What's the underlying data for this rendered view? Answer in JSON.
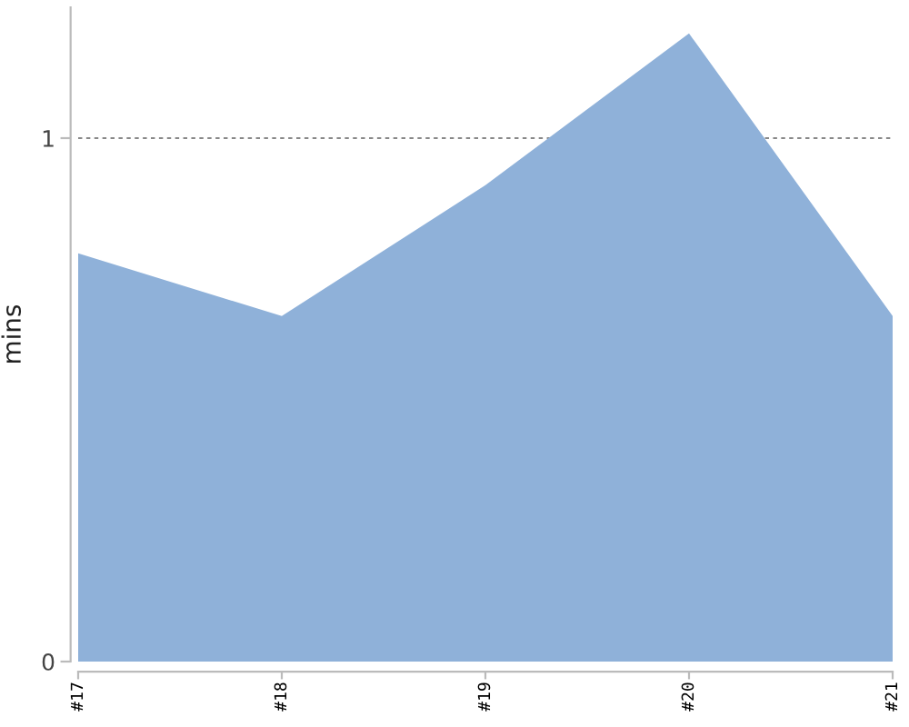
{
  "chart_data": {
    "type": "area",
    "ylabel": "mins",
    "categories": [
      "#17",
      "#18",
      "#19",
      "#20",
      "#21"
    ],
    "series": [
      {
        "color": "#8fb1d9",
        "values": [
          0.78,
          0.66,
          0.91,
          1.2,
          0.66
        ]
      }
    ],
    "ylim": [
      0,
      1.25
    ],
    "yticks": [
      0,
      1
    ],
    "grid": "y"
  }
}
